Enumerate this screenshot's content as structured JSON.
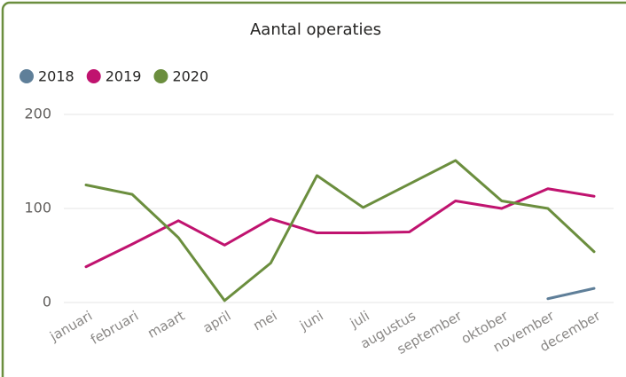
{
  "chart_data": {
    "type": "line",
    "title": "Aantal operaties",
    "categories": [
      "januari",
      "februari",
      "maart",
      "april",
      "mei",
      "juni",
      "juli",
      "augustus",
      "september",
      "oktober",
      "november",
      "december"
    ],
    "series": [
      {
        "name": "2018",
        "color": "#5f7f99",
        "values": [
          null,
          null,
          null,
          null,
          null,
          null,
          null,
          null,
          null,
          null,
          4,
          15
        ]
      },
      {
        "name": "2019",
        "color": "#c0136f",
        "values": [
          38,
          62,
          87,
          61,
          89,
          74,
          74,
          75,
          108,
          100,
          121,
          113
        ]
      },
      {
        "name": "2020",
        "color": "#6b8e3e",
        "values": [
          125,
          115,
          69,
          2,
          42,
          135,
          101,
          126,
          151,
          108,
          100,
          54
        ]
      }
    ],
    "ylim": [
      0,
      200
    ],
    "yticks": [
      0,
      100,
      200
    ],
    "grid": true,
    "legend": "top-left"
  }
}
